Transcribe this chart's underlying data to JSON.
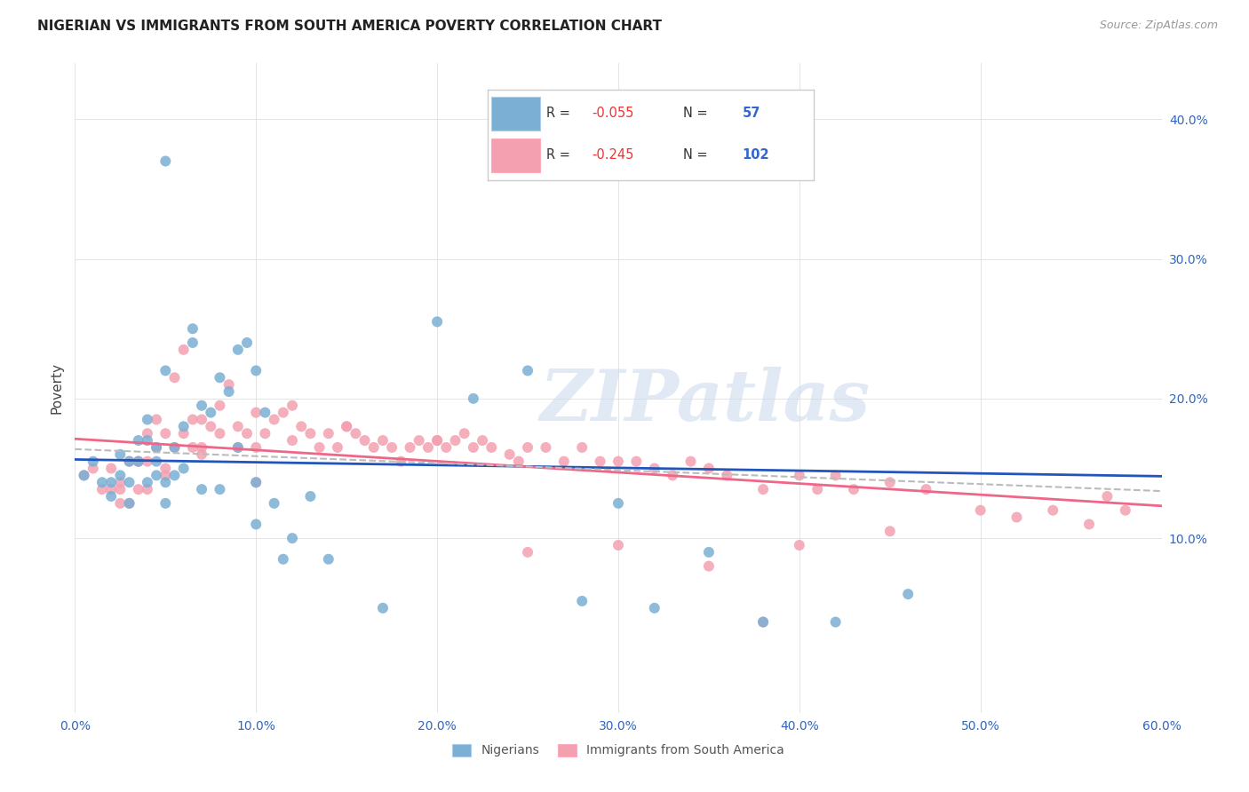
{
  "title": "NIGERIAN VS IMMIGRANTS FROM SOUTH AMERICA POVERTY CORRELATION CHART",
  "source": "Source: ZipAtlas.com",
  "ylabel": "Poverty",
  "watermark": "ZIPatlas",
  "blue_color": "#7BAFD4",
  "pink_color": "#F4A0B0",
  "blue_line_color": "#2255BB",
  "pink_line_color": "#EE6688",
  "trend_dash_color": "#BBBBBB",
  "xlim": [
    0.0,
    0.6
  ],
  "ylim": [
    -0.025,
    0.44
  ],
  "legend_bottom_blue": "Nigerians",
  "legend_bottom_pink": "Immigrants from South America",
  "blue_scatter_x": [
    0.005,
    0.01,
    0.015,
    0.02,
    0.02,
    0.025,
    0.025,
    0.03,
    0.03,
    0.03,
    0.035,
    0.035,
    0.04,
    0.04,
    0.04,
    0.045,
    0.045,
    0.045,
    0.05,
    0.05,
    0.05,
    0.055,
    0.055,
    0.06,
    0.06,
    0.065,
    0.065,
    0.07,
    0.07,
    0.075,
    0.08,
    0.08,
    0.085,
    0.09,
    0.09,
    0.095,
    0.1,
    0.1,
    0.1,
    0.105,
    0.11,
    0.115,
    0.12,
    0.13,
    0.14,
    0.17,
    0.2,
    0.22,
    0.25,
    0.28,
    0.3,
    0.32,
    0.35,
    0.38,
    0.05,
    0.42,
    0.46
  ],
  "blue_scatter_y": [
    0.145,
    0.155,
    0.14,
    0.14,
    0.13,
    0.16,
    0.145,
    0.155,
    0.14,
    0.125,
    0.17,
    0.155,
    0.185,
    0.17,
    0.14,
    0.165,
    0.155,
    0.145,
    0.22,
    0.14,
    0.125,
    0.165,
    0.145,
    0.18,
    0.15,
    0.25,
    0.24,
    0.195,
    0.135,
    0.19,
    0.215,
    0.135,
    0.205,
    0.235,
    0.165,
    0.24,
    0.22,
    0.14,
    0.11,
    0.19,
    0.125,
    0.085,
    0.1,
    0.13,
    0.085,
    0.05,
    0.255,
    0.2,
    0.22,
    0.055,
    0.125,
    0.05,
    0.09,
    0.04,
    0.37,
    0.04,
    0.06
  ],
  "pink_scatter_x": [
    0.005,
    0.01,
    0.015,
    0.02,
    0.02,
    0.025,
    0.025,
    0.03,
    0.03,
    0.035,
    0.035,
    0.04,
    0.04,
    0.04,
    0.045,
    0.045,
    0.05,
    0.05,
    0.055,
    0.055,
    0.06,
    0.06,
    0.065,
    0.065,
    0.07,
    0.07,
    0.075,
    0.08,
    0.08,
    0.085,
    0.09,
    0.09,
    0.095,
    0.1,
    0.1,
    0.105,
    0.11,
    0.115,
    0.12,
    0.12,
    0.125,
    0.13,
    0.135,
    0.14,
    0.145,
    0.15,
    0.155,
    0.16,
    0.165,
    0.17,
    0.175,
    0.18,
    0.185,
    0.19,
    0.195,
    0.2,
    0.205,
    0.21,
    0.215,
    0.22,
    0.225,
    0.23,
    0.24,
    0.245,
    0.25,
    0.26,
    0.27,
    0.28,
    0.29,
    0.3,
    0.31,
    0.32,
    0.33,
    0.34,
    0.35,
    0.36,
    0.38,
    0.4,
    0.41,
    0.42,
    0.43,
    0.45,
    0.47,
    0.5,
    0.52,
    0.54,
    0.56,
    0.58,
    0.57,
    0.38,
    0.25,
    0.3,
    0.35,
    0.4,
    0.45,
    0.2,
    0.15,
    0.1,
    0.07,
    0.05,
    0.035,
    0.025
  ],
  "pink_scatter_y": [
    0.145,
    0.15,
    0.135,
    0.15,
    0.135,
    0.14,
    0.125,
    0.155,
    0.125,
    0.155,
    0.135,
    0.175,
    0.155,
    0.135,
    0.185,
    0.165,
    0.175,
    0.15,
    0.215,
    0.165,
    0.235,
    0.175,
    0.185,
    0.165,
    0.185,
    0.165,
    0.18,
    0.195,
    0.175,
    0.21,
    0.18,
    0.165,
    0.175,
    0.19,
    0.165,
    0.175,
    0.185,
    0.19,
    0.195,
    0.17,
    0.18,
    0.175,
    0.165,
    0.175,
    0.165,
    0.18,
    0.175,
    0.17,
    0.165,
    0.17,
    0.165,
    0.155,
    0.165,
    0.17,
    0.165,
    0.17,
    0.165,
    0.17,
    0.175,
    0.165,
    0.17,
    0.165,
    0.16,
    0.155,
    0.165,
    0.165,
    0.155,
    0.165,
    0.155,
    0.155,
    0.155,
    0.15,
    0.145,
    0.155,
    0.15,
    0.145,
    0.135,
    0.145,
    0.135,
    0.145,
    0.135,
    0.14,
    0.135,
    0.12,
    0.115,
    0.12,
    0.11,
    0.12,
    0.13,
    0.04,
    0.09,
    0.095,
    0.08,
    0.095,
    0.105,
    0.17,
    0.18,
    0.14,
    0.16,
    0.145,
    0.155,
    0.135
  ]
}
